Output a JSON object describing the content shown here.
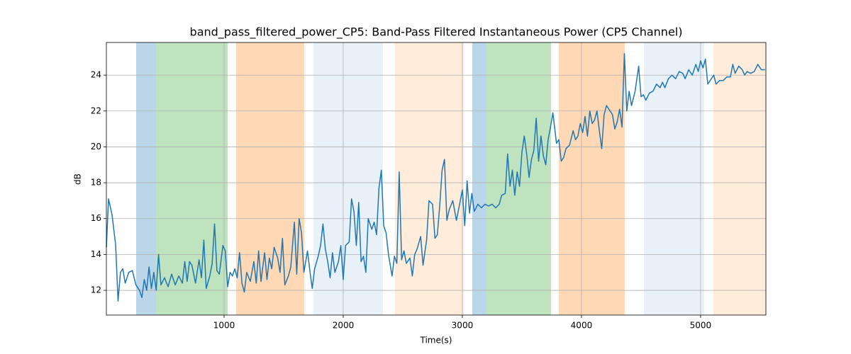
{
  "chart_data": {
    "type": "line",
    "title": "band_pass_filtered_power_CP5: Band-Pass Filtered Instantaneous Power (CP5 Channel)",
    "x_label": "Time(s)",
    "y_label": "dB",
    "xlim": [
      12,
      5548
    ],
    "ylim": [
      10.62,
      25.82
    ],
    "xticks": [
      1000,
      2000,
      3000,
      4000,
      5000
    ],
    "yticks": [
      12,
      14,
      16,
      18,
      20,
      22,
      24
    ],
    "grid": true,
    "spans": [
      {
        "start": 262,
        "end": 429,
        "color": "#1f77b4",
        "opacity": 0.3
      },
      {
        "start": 429,
        "end": 1030,
        "color": "#2ca02c",
        "opacity": 0.3
      },
      {
        "start": 1101,
        "end": 1673,
        "color": "#ff7f0e",
        "opacity": 0.3
      },
      {
        "start": 1750,
        "end": 2333,
        "color": "#1f77b4",
        "opacity": 0.1
      },
      {
        "start": 2434,
        "end": 3012,
        "color": "#ff7f0e",
        "opacity": 0.15
      },
      {
        "start": 3083,
        "end": 3202,
        "color": "#1f77b4",
        "opacity": 0.3
      },
      {
        "start": 3202,
        "end": 3744,
        "color": "#2ca02c",
        "opacity": 0.3
      },
      {
        "start": 3810,
        "end": 4363,
        "color": "#ff7f0e",
        "opacity": 0.3
      },
      {
        "start": 4524,
        "end": 5030,
        "color": "#1f77b4",
        "opacity": 0.1
      },
      {
        "start": 5107,
        "end": 5548,
        "color": "#ff7f0e",
        "opacity": 0.15
      }
    ],
    "x": [
      12,
      30,
      60,
      90,
      110,
      130,
      150,
      170,
      200,
      230,
      260,
      290,
      310,
      330,
      350,
      370,
      390,
      410,
      430,
      450,
      470,
      500,
      530,
      560,
      590,
      620,
      650,
      670,
      690,
      710,
      730,
      760,
      790,
      810,
      830,
      850,
      880,
      900,
      920,
      940,
      960,
      990,
      1010,
      1030,
      1050,
      1070,
      1090,
      1110,
      1130,
      1150,
      1170,
      1190,
      1220,
      1250,
      1270,
      1290,
      1310,
      1340,
      1360,
      1380,
      1400,
      1420,
      1450,
      1470,
      1490,
      1510,
      1540,
      1560,
      1590,
      1610,
      1630,
      1650,
      1670,
      1700,
      1720,
      1740,
      1760,
      1790,
      1810,
      1830,
      1850,
      1870,
      1890,
      1910,
      1930,
      1960,
      1980,
      2000,
      2020,
      2050,
      2070,
      2090,
      2110,
      2130,
      2150,
      2170,
      2190,
      2210,
      2240,
      2260,
      2280,
      2300,
      2320,
      2340,
      2360,
      2380,
      2410,
      2430,
      2450,
      2470,
      2490,
      2510,
      2530,
      2560,
      2580,
      2600,
      2620,
      2650,
      2670,
      2700,
      2720,
      2750,
      2770,
      2790,
      2810,
      2830,
      2850,
      2870,
      2890,
      2920,
      2950,
      2980,
      3000,
      3020,
      3040,
      3060,
      3080,
      3100,
      3130,
      3160,
      3190,
      3220,
      3250,
      3280,
      3310,
      3330,
      3360,
      3380,
      3400,
      3420,
      3440,
      3460,
      3480,
      3500,
      3520,
      3540,
      3560,
      3580,
      3600,
      3620,
      3640,
      3660,
      3680,
      3700,
      3720,
      3740,
      3760,
      3790,
      3810,
      3830,
      3850,
      3870,
      3900,
      3930,
      3950,
      3970,
      3990,
      4010,
      4030,
      4050,
      4070,
      4090,
      4110,
      4130,
      4150,
      4170,
      4190,
      4210,
      4240,
      4260,
      4280,
      4300,
      4320,
      4340,
      4360,
      4380,
      4400,
      4420,
      4450,
      4480,
      4500,
      4520,
      4540,
      4570,
      4600,
      4630,
      4660,
      4680,
      4700,
      4730,
      4760,
      4790,
      4820,
      4850,
      4870,
      4900,
      4930,
      4960,
      4980,
      5000,
      5020,
      5040,
      5060,
      5090,
      5110,
      5130,
      5160,
      5190,
      5220,
      5250,
      5270,
      5290,
      5320,
      5350,
      5370,
      5390,
      5420,
      5450,
      5480,
      5510,
      5540
    ],
    "series": [
      {
        "color": "#1f77b4",
        "values": [
          14.4,
          17.1,
          16.2,
          14.5,
          11.4,
          13.0,
          13.2,
          12.4,
          13.0,
          13.1,
          12.3,
          12.0,
          11.6,
          12.6,
          12.0,
          13.3,
          12.1,
          13.0,
          12.0,
          14.0,
          12.3,
          12.7,
          12.2,
          12.9,
          12.3,
          12.8,
          12.4,
          13.6,
          12.5,
          13.6,
          13.4,
          12.4,
          13.7,
          12.7,
          14.8,
          12.1,
          12.8,
          13.5,
          15.7,
          13.1,
          12.9,
          14.5,
          14.2,
          12.2,
          13.0,
          12.8,
          13.2,
          12.7,
          14.1,
          12.4,
          11.9,
          13.0,
          12.5,
          13.6,
          12.4,
          14.2,
          12.5,
          14.1,
          12.6,
          13.8,
          13.2,
          14.4,
          13.8,
          13.0,
          14.9,
          12.3,
          12.8,
          13.3,
          15.8,
          12.9,
          16.0,
          15.2,
          13.0,
          14.2,
          13.1,
          12.1,
          13.2,
          13.9,
          14.5,
          15.7,
          14.3,
          13.6,
          12.7,
          14.1,
          13.0,
          13.6,
          14.5,
          12.6,
          14.5,
          14.7,
          17.1,
          16.4,
          14.5,
          16.9,
          13.6,
          13.9,
          13.0,
          16.0,
          15.4,
          15.8,
          15.1,
          17.7,
          18.7,
          15.6,
          15.2,
          14.0,
          12.8,
          13.9,
          13.5,
          18.6,
          13.7,
          14.2,
          13.5,
          13.8,
          12.8,
          14.0,
          14.3,
          15.0,
          13.4,
          14.8,
          17.0,
          16.8,
          14.9,
          15.1,
          16.7,
          18.7,
          19.3,
          15.9,
          16.5,
          17.0,
          15.9,
          16.9,
          17.6,
          15.6,
          18.1,
          16.3,
          17.4,
          16.4,
          16.8,
          16.6,
          16.8,
          16.7,
          16.8,
          16.6,
          16.8,
          17.3,
          17.4,
          19.6,
          17.8,
          18.7,
          17.3,
          18.6,
          17.8,
          19.7,
          20.6,
          19.6,
          18.3,
          19.3,
          19.8,
          21.6,
          19.2,
          20.6,
          19.5,
          19.0,
          20.4,
          21.1,
          21.9,
          20.2,
          20.4,
          19.2,
          19.4,
          19.9,
          20.1,
          20.9,
          20.4,
          20.6,
          21.3,
          20.8,
          21.7,
          20.6,
          22.0,
          21.3,
          21.5,
          22.0,
          20.9,
          19.9,
          21.8,
          22.3,
          22.0,
          21.8,
          21.0,
          21.4,
          22.1,
          21.1,
          25.2,
          22.0,
          23.1,
          22.3,
          23.1,
          24.5,
          22.8,
          22.9,
          22.6,
          23.0,
          23.1,
          23.5,
          23.3,
          23.6,
          23.3,
          23.8,
          24.0,
          23.8,
          24.2,
          24.1,
          23.8,
          24.3,
          24.0,
          24.6,
          24.2,
          24.8,
          24.4,
          24.9,
          23.5,
          23.8,
          24.0,
          23.5,
          23.7,
          23.7,
          23.9,
          23.9,
          24.6,
          24.1,
          24.5,
          24.3,
          24.0,
          24.2,
          24.1,
          24.2,
          24.6,
          24.3,
          24.3
        ]
      }
    ]
  }
}
